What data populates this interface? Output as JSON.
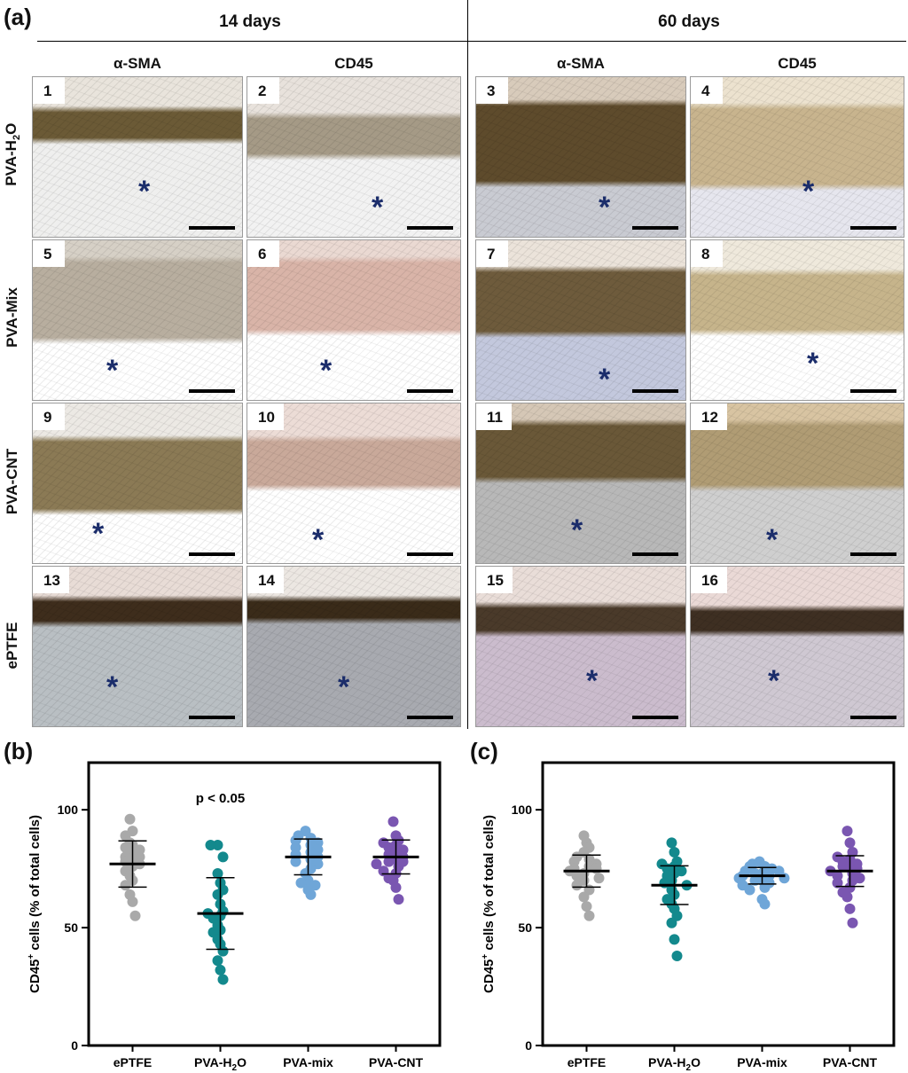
{
  "figure": {
    "panel_a_letter": "(a)",
    "panel_b_letter": "(b)",
    "panel_c_letter": "(c)",
    "groups": [
      {
        "title": "14 days",
        "columns": [
          "α-SMA",
          "CD45"
        ]
      },
      {
        "title": "60 days",
        "columns": [
          "α-SMA",
          "CD45"
        ]
      }
    ],
    "rows": [
      {
        "label_main": "PVA-H",
        "label_sub": "2",
        "label_tail": "O"
      },
      {
        "label_main": "PVA-Mix",
        "label_sub": "",
        "label_tail": ""
      },
      {
        "label_main": "PVA-CNT",
        "label_sub": "",
        "label_tail": ""
      },
      {
        "label_main": "ePTFE",
        "label_sub": "",
        "label_tail": ""
      }
    ],
    "tiles": [
      [
        "1",
        "2",
        "3",
        "4"
      ],
      [
        "5",
        "6",
        "7",
        "8"
      ],
      [
        "9",
        "10",
        "11",
        "12"
      ],
      [
        "13",
        "14",
        "15",
        "16"
      ]
    ],
    "asterisk": "*",
    "tile_colors": [
      [
        {
          "top": "#e9e4dc",
          "band": "#6b5a36",
          "bottom": "#efefee"
        },
        {
          "top": "#e8e2dc",
          "band": "#a59a86",
          "bottom": "#f2f2f2"
        },
        {
          "top": "#d8cbbb",
          "band": "#5e4b2c",
          "bottom": "#c9cbd2"
        },
        {
          "top": "#ece2cf",
          "band": "#c8b48e",
          "bottom": "#e6e6ee"
        }
      ],
      [
        {
          "top": "#d6d0c6",
          "band": "#b8ae9f",
          "bottom": "#ffffff"
        },
        {
          "top": "#ead9d2",
          "band": "#d9b4a8",
          "bottom": "#ffffff"
        },
        {
          "top": "#ebe3da",
          "band": "#6e5b3c",
          "bottom": "#c3c8dd"
        },
        {
          "top": "#efe9dc",
          "band": "#c6b48b",
          "bottom": "#ffffff"
        }
      ],
      [
        {
          "top": "#ece9e4",
          "band": "#8b7a55",
          "bottom": "#ffffff"
        },
        {
          "top": "#ecdcd6",
          "band": "#c9a99a",
          "bottom": "#ffffff"
        },
        {
          "top": "#d5c7b6",
          "band": "#6a5838",
          "bottom": "#b8b8b8"
        },
        {
          "top": "#d8c4a2",
          "band": "#b09c74",
          "bottom": "#cfcfcf"
        }
      ],
      [
        {
          "top": "#e8dcd6",
          "band": "#3e2d1c",
          "bottom": "#b9bfc3"
        },
        {
          "top": "#ece7e2",
          "band": "#3a2b19",
          "bottom": "#a8aab0"
        },
        {
          "top": "#e9ddd8",
          "band": "#4a3a2a",
          "bottom": "#cbbccd"
        },
        {
          "top": "#ead9d6",
          "band": "#3e2f22",
          "bottom": "#cfc8d2"
        }
      ]
    ]
  },
  "chart_data": [
    {
      "type": "scatter",
      "panel": "(b)",
      "ylabel_main": "CD45",
      "ylabel_sup": "+",
      "ylabel_tail": " cells (% of total cells)",
      "ylim": [
        0,
        120
      ],
      "yticks": [
        0,
        50,
        100
      ],
      "categories": [
        "ePTFE",
        "PVA-H2O",
        "PVA-mix",
        "PVA-CNT"
      ],
      "category_labels": [
        {
          "main": "ePTFE",
          "sub": "",
          "tail": ""
        },
        {
          "main": "PVA-H",
          "sub": "2",
          "tail": "O"
        },
        {
          "main": "PVA-mix",
          "sub": "",
          "tail": ""
        },
        {
          "main": "PVA-CNT",
          "sub": "",
          "tail": ""
        }
      ],
      "annotation": {
        "text": "p < 0.05",
        "category": 1,
        "y": 103
      },
      "series": [
        {
          "category": "ePTFE",
          "color": "#a9a9a9",
          "mean": 77,
          "sd": 9.8,
          "values": [
            96,
            91,
            89,
            86,
            85,
            84,
            83,
            82,
            80,
            80,
            79,
            78,
            77,
            76,
            74,
            72,
            70,
            68,
            64,
            61,
            55
          ]
        },
        {
          "category": "PVA-H2O",
          "color": "#13898d",
          "mean": 56,
          "sd": 15.2,
          "values": [
            85,
            85,
            80,
            73,
            69,
            66,
            64,
            60,
            57,
            56,
            55,
            54,
            51,
            49,
            48,
            45,
            43,
            40,
            36,
            32,
            28
          ]
        },
        {
          "category": "PVA-mix",
          "color": "#6fa6d8",
          "mean": 80,
          "sd": 7.6,
          "values": [
            91,
            89,
            88,
            87,
            86,
            85,
            84,
            83,
            82,
            81,
            80,
            79,
            78,
            77,
            75,
            73,
            70,
            69,
            68,
            66,
            64
          ]
        },
        {
          "category": "PVA-CNT",
          "color": "#7a56b1",
          "mean": 80,
          "sd": 7.2,
          "values": [
            95,
            89,
            87,
            86,
            85,
            84,
            83,
            82,
            81,
            80,
            79,
            78,
            78,
            77,
            76,
            74,
            73,
            71,
            70,
            67,
            62
          ]
        }
      ]
    },
    {
      "type": "scatter",
      "panel": "(c)",
      "ylabel_main": "CD45",
      "ylabel_sup": "+",
      "ylabel_tail": " cells (% of total cells)",
      "ylim": [
        0,
        120
      ],
      "yticks": [
        0,
        50,
        100
      ],
      "categories": [
        "ePTFE",
        "PVA-H2O",
        "PVA-mix",
        "PVA-CNT"
      ],
      "category_labels": [
        {
          "main": "ePTFE",
          "sub": "",
          "tail": ""
        },
        {
          "main": "PVA-H",
          "sub": "2",
          "tail": "O"
        },
        {
          "main": "PVA-mix",
          "sub": "",
          "tail": ""
        },
        {
          "main": "PVA-CNT",
          "sub": "",
          "tail": ""
        }
      ],
      "annotation": null,
      "series": [
        {
          "category": "ePTFE",
          "color": "#a9a9a9",
          "mean": 74,
          "sd": 6.8,
          "values": [
            89,
            86,
            84,
            82,
            80,
            79,
            78,
            77,
            76,
            75,
            75,
            74,
            73,
            72,
            71,
            70,
            68,
            66,
            63,
            59,
            55
          ]
        },
        {
          "category": "PVA-H2O",
          "color": "#13898d",
          "mean": 68,
          "sd": 8.2,
          "values": [
            86,
            82,
            78,
            77,
            76,
            75,
            74,
            73,
            72,
            70,
            69,
            68,
            66,
            64,
            62,
            60,
            58,
            55,
            52,
            45,
            38
          ]
        },
        {
          "category": "PVA-mix",
          "color": "#6fa6d8",
          "mean": 72,
          "sd": 3.5,
          "values": [
            78,
            77,
            76,
            76,
            75,
            74,
            74,
            73,
            73,
            72,
            72,
            71,
            71,
            70,
            70,
            69,
            68,
            67,
            66,
            62,
            60
          ]
        },
        {
          "category": "PVA-CNT",
          "color": "#7a56b1",
          "mean": 74,
          "sd": 6.5,
          "values": [
            91,
            86,
            82,
            80,
            79,
            78,
            77,
            76,
            76,
            75,
            74,
            73,
            72,
            71,
            70,
            69,
            67,
            65,
            63,
            58,
            52
          ]
        }
      ]
    }
  ]
}
